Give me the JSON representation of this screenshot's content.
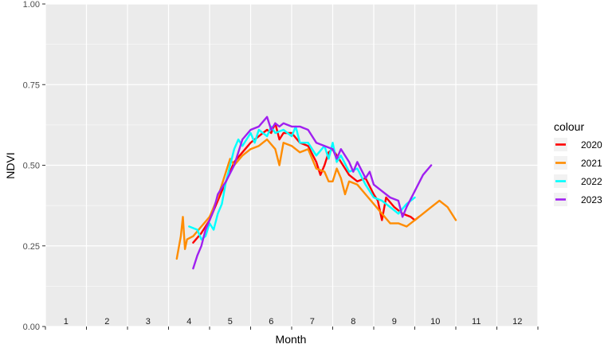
{
  "chart_data": {
    "type": "line",
    "xlabel": "Month",
    "ylabel": "NDVI",
    "xlim": [
      1,
      13
    ],
    "ylim": [
      0,
      1
    ],
    "yticks": [
      {
        "value": 0.0,
        "label": "0.00"
      },
      {
        "value": 0.25,
        "label": "0.25"
      },
      {
        "value": 0.5,
        "label": "0.50"
      },
      {
        "value": 0.75,
        "label": "0.75"
      },
      {
        "value": 1.0,
        "label": "1.00"
      }
    ],
    "month_labels": [
      "1",
      "2",
      "3",
      "4",
      "5",
      "6",
      "7",
      "8",
      "9",
      "10",
      "11",
      "12"
    ],
    "legend": {
      "title": "colour",
      "position": "right"
    },
    "grid": true,
    "series": [
      {
        "name": "2020",
        "color": "#FF0000",
        "points": [
          [
            4.6,
            0.26
          ],
          [
            4.8,
            0.29
          ],
          [
            5.0,
            0.33
          ],
          [
            5.2,
            0.39
          ],
          [
            5.4,
            0.45
          ],
          [
            5.6,
            0.51
          ],
          [
            5.8,
            0.54
          ],
          [
            6.0,
            0.57
          ],
          [
            6.2,
            0.59
          ],
          [
            6.4,
            0.61
          ],
          [
            6.5,
            0.6
          ],
          [
            6.6,
            0.63
          ],
          [
            6.7,
            0.58
          ],
          [
            6.8,
            0.6
          ],
          [
            7.0,
            0.6
          ],
          [
            7.2,
            0.57
          ],
          [
            7.4,
            0.56
          ],
          [
            7.6,
            0.51
          ],
          [
            7.7,
            0.47
          ],
          [
            7.8,
            0.5
          ],
          [
            7.9,
            0.54
          ],
          [
            8.0,
            0.55
          ],
          [
            8.2,
            0.51
          ],
          [
            8.4,
            0.47
          ],
          [
            8.6,
            0.45
          ],
          [
            8.8,
            0.46
          ],
          [
            9.0,
            0.41
          ],
          [
            9.1,
            0.39
          ],
          [
            9.2,
            0.33
          ],
          [
            9.3,
            0.4
          ],
          [
            9.5,
            0.37
          ],
          [
            9.7,
            0.35
          ],
          [
            9.9,
            0.34
          ],
          [
            10.0,
            0.33
          ],
          [
            10.1,
            0.34
          ]
        ]
      },
      {
        "name": "2021",
        "color": "#FF8C00",
        "points": [
          [
            4.2,
            0.21
          ],
          [
            4.3,
            0.28
          ],
          [
            4.35,
            0.34
          ],
          [
            4.4,
            0.24
          ],
          [
            4.45,
            0.27
          ],
          [
            4.6,
            0.28
          ],
          [
            4.8,
            0.31
          ],
          [
            5.0,
            0.34
          ],
          [
            5.2,
            0.4
          ],
          [
            5.4,
            0.48
          ],
          [
            5.5,
            0.52
          ],
          [
            5.6,
            0.5
          ],
          [
            5.8,
            0.53
          ],
          [
            6.0,
            0.55
          ],
          [
            6.2,
            0.56
          ],
          [
            6.4,
            0.58
          ],
          [
            6.6,
            0.55
          ],
          [
            6.7,
            0.5
          ],
          [
            6.8,
            0.57
          ],
          [
            7.0,
            0.56
          ],
          [
            7.2,
            0.54
          ],
          [
            7.4,
            0.55
          ],
          [
            7.6,
            0.49
          ],
          [
            7.8,
            0.48
          ],
          [
            7.9,
            0.45
          ],
          [
            8.0,
            0.45
          ],
          [
            8.1,
            0.49
          ],
          [
            8.2,
            0.46
          ],
          [
            8.3,
            0.41
          ],
          [
            8.4,
            0.45
          ],
          [
            8.6,
            0.44
          ],
          [
            8.8,
            0.41
          ],
          [
            9.0,
            0.38
          ],
          [
            9.2,
            0.35
          ],
          [
            9.4,
            0.32
          ],
          [
            9.6,
            0.32
          ],
          [
            9.8,
            0.31
          ],
          [
            10.0,
            0.33
          ],
          [
            10.2,
            0.35
          ],
          [
            10.4,
            0.37
          ],
          [
            10.6,
            0.39
          ],
          [
            10.8,
            0.37
          ],
          [
            11.0,
            0.33
          ]
        ]
      },
      {
        "name": "2022",
        "color": "#00FFFF",
        "points": [
          [
            4.5,
            0.31
          ],
          [
            4.7,
            0.3
          ],
          [
            4.8,
            0.27
          ],
          [
            4.9,
            0.28
          ],
          [
            5.0,
            0.32
          ],
          [
            5.1,
            0.3
          ],
          [
            5.2,
            0.35
          ],
          [
            5.3,
            0.38
          ],
          [
            5.4,
            0.45
          ],
          [
            5.5,
            0.5
          ],
          [
            5.6,
            0.55
          ],
          [
            5.7,
            0.58
          ],
          [
            5.8,
            0.56
          ],
          [
            5.9,
            0.58
          ],
          [
            6.0,
            0.6
          ],
          [
            6.1,
            0.57
          ],
          [
            6.2,
            0.61
          ],
          [
            6.4,
            0.59
          ],
          [
            6.5,
            0.62
          ],
          [
            6.6,
            0.6
          ],
          [
            6.8,
            0.61
          ],
          [
            7.0,
            0.59
          ],
          [
            7.1,
            0.62
          ],
          [
            7.2,
            0.57
          ],
          [
            7.4,
            0.57
          ],
          [
            7.6,
            0.53
          ],
          [
            7.8,
            0.56
          ],
          [
            7.9,
            0.52
          ],
          [
            8.0,
            0.57
          ],
          [
            8.1,
            0.51
          ],
          [
            8.2,
            0.53
          ],
          [
            8.4,
            0.48
          ],
          [
            8.6,
            0.49
          ],
          [
            8.8,
            0.44
          ],
          [
            9.0,
            0.4
          ],
          [
            9.2,
            0.39
          ],
          [
            9.4,
            0.37
          ],
          [
            9.5,
            0.36
          ],
          [
            9.6,
            0.35
          ],
          [
            9.8,
            0.38
          ],
          [
            10.0,
            0.4
          ]
        ]
      },
      {
        "name": "2023",
        "color": "#A020F0",
        "points": [
          [
            4.6,
            0.18
          ],
          [
            4.7,
            0.22
          ],
          [
            4.8,
            0.25
          ],
          [
            4.9,
            0.3
          ],
          [
            5.0,
            0.33
          ],
          [
            5.1,
            0.36
          ],
          [
            5.2,
            0.41
          ],
          [
            5.4,
            0.45
          ],
          [
            5.6,
            0.5
          ],
          [
            5.8,
            0.58
          ],
          [
            6.0,
            0.61
          ],
          [
            6.2,
            0.62
          ],
          [
            6.4,
            0.65
          ],
          [
            6.5,
            0.61
          ],
          [
            6.6,
            0.63
          ],
          [
            6.7,
            0.62
          ],
          [
            6.8,
            0.63
          ],
          [
            7.0,
            0.62
          ],
          [
            7.2,
            0.62
          ],
          [
            7.4,
            0.61
          ],
          [
            7.6,
            0.57
          ],
          [
            7.8,
            0.56
          ],
          [
            8.0,
            0.55
          ],
          [
            8.1,
            0.52
          ],
          [
            8.2,
            0.55
          ],
          [
            8.4,
            0.51
          ],
          [
            8.5,
            0.48
          ],
          [
            8.6,
            0.51
          ],
          [
            8.8,
            0.46
          ],
          [
            8.9,
            0.48
          ],
          [
            9.0,
            0.44
          ],
          [
            9.2,
            0.42
          ],
          [
            9.4,
            0.4
          ],
          [
            9.6,
            0.39
          ],
          [
            9.7,
            0.34
          ],
          [
            9.8,
            0.37
          ],
          [
            10.0,
            0.42
          ],
          [
            10.2,
            0.47
          ],
          [
            10.4,
            0.5
          ]
        ]
      }
    ]
  }
}
